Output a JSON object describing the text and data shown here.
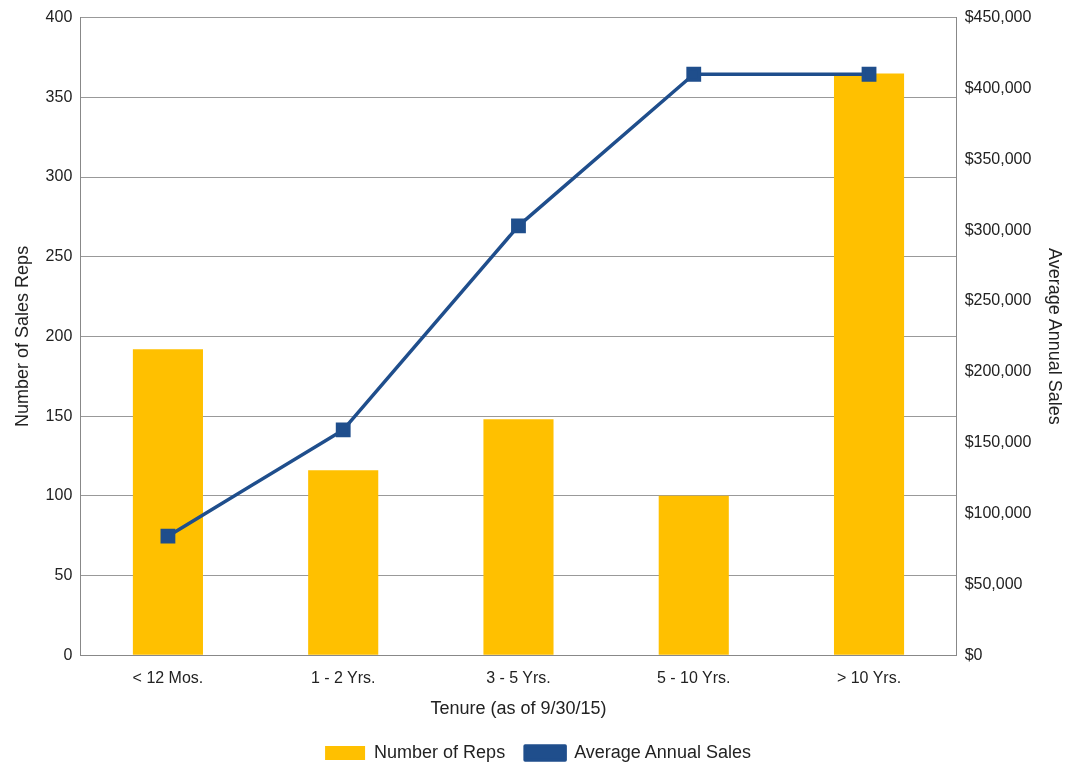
{
  "chart_data": {
    "type": "bar",
    "xlabel": "Tenure (as of 9/30/15)",
    "ylabel": "Number of Sales Reps",
    "y2label": "Average Annual Sales",
    "categories": [
      "< 12 Mos.",
      "1 - 2 Yrs.",
      "3 - 5 Yrs.",
      "5 - 10 Yrs.",
      "> 10 Yrs."
    ],
    "series": [
      {
        "name": "Number of Reps",
        "color": "#ffc000",
        "values": [
          192,
          116,
          148,
          100,
          365
        ]
      },
      {
        "name": "Average Annual Sales",
        "type": "line",
        "axis": "y2",
        "color": "#1f4e8c",
        "marker": "square",
        "values": [
          84000,
          159000,
          303000,
          410000,
          410000
        ]
      }
    ],
    "ylim": [
      0,
      400
    ],
    "yticks": [
      0,
      50,
      100,
      150,
      200,
      250,
      300,
      350,
      400
    ],
    "y2lim": [
      0,
      450000
    ],
    "y2ticks": [
      {
        "value": 0,
        "label": "$0"
      },
      {
        "value": 50000,
        "label": "$50,000"
      },
      {
        "value": 100000,
        "label": "$100,000"
      },
      {
        "value": 150000,
        "label": "$150,000"
      },
      {
        "value": 200000,
        "label": "$200,000"
      },
      {
        "value": 250000,
        "label": "$250,000"
      },
      {
        "value": 300000,
        "label": "$300,000"
      },
      {
        "value": 350000,
        "label": "$350,000"
      },
      {
        "value": 400000,
        "label": "$400,000"
      },
      {
        "value": 450000,
        "label": "$450,000"
      }
    ],
    "grid": "y",
    "legend": "bottom"
  }
}
